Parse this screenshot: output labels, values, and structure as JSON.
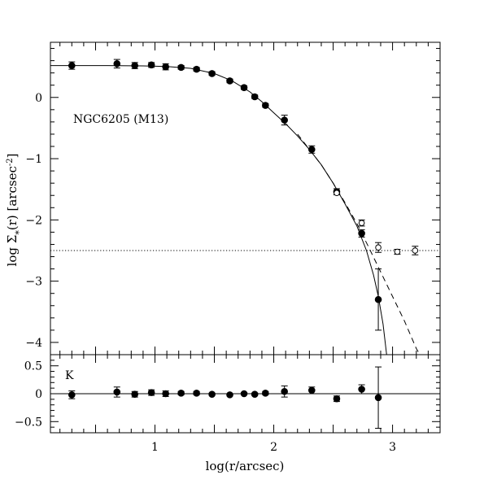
{
  "chart_data": [
    {
      "type": "scatter",
      "panel": "top",
      "title": "",
      "xlabel": "",
      "ylabel": "log Σ*(r) [arcsec⁻²]",
      "ylabel_parts": {
        "pre": "log Σ",
        "sub": "*",
        "mid": "(r) [arcsec",
        "sup": "-2",
        "post": "]"
      },
      "xlim": [
        0.12,
        3.4
      ],
      "ylim": [
        -4.2,
        0.9
      ],
      "yticks": [
        0,
        -1,
        -2,
        -3,
        -4
      ],
      "ytick_labels": [
        "0",
        "−1",
        "−2",
        "−3",
        "−4"
      ],
      "annotation": "NGC6205 (M13)",
      "background_level": -2.5,
      "series": [
        {
          "marker": "filled-circle",
          "points": [
            {
              "x": 0.3,
              "y": 0.52,
              "err": 0.06
            },
            {
              "x": 0.68,
              "y": 0.55,
              "err": 0.07
            },
            {
              "x": 0.83,
              "y": 0.52,
              "err": 0.05
            },
            {
              "x": 0.97,
              "y": 0.53,
              "err": 0.04
            },
            {
              "x": 1.09,
              "y": 0.5,
              "err": 0.05
            },
            {
              "x": 1.22,
              "y": 0.49,
              "err": 0.03
            },
            {
              "x": 1.35,
              "y": 0.46,
              "err": 0.03
            },
            {
              "x": 1.48,
              "y": 0.39,
              "err": 0.03
            },
            {
              "x": 1.63,
              "y": 0.27,
              "err": 0.03
            },
            {
              "x": 1.75,
              "y": 0.16,
              "err": 0.03
            },
            {
              "x": 1.84,
              "y": 0.01,
              "err": 0.03
            },
            {
              "x": 1.93,
              "y": -0.13,
              "err": 0.03
            },
            {
              "x": 2.09,
              "y": -0.37,
              "err": 0.08
            },
            {
              "x": 2.32,
              "y": -0.85,
              "err": 0.06
            },
            {
              "x": 2.53,
              "y": -1.54,
              "err": 0.05
            },
            {
              "x": 2.74,
              "y": -2.22,
              "err": 0.06
            },
            {
              "x": 2.88,
              "y": -3.3,
              "err": 0.5
            }
          ]
        },
        {
          "marker": "open-circle",
          "points": [
            {
              "x": 2.53,
              "y": -1.56,
              "err": 0.03
            },
            {
              "x": 2.74,
              "y": -2.05,
              "err": 0.05
            },
            {
              "x": 2.88,
              "y": -2.45,
              "err": 0.08
            },
            {
              "x": 3.04,
              "y": -2.52,
              "err": 0.04
            },
            {
              "x": 3.19,
              "y": -2.5,
              "err": 0.07
            }
          ]
        }
      ],
      "models": [
        {
          "style": "solid",
          "points": [
            [
              0.12,
              0.52
            ],
            [
              0.6,
              0.52
            ],
            [
              0.9,
              0.515
            ],
            [
              1.1,
              0.505
            ],
            [
              1.3,
              0.475
            ],
            [
              1.5,
              0.39
            ],
            [
              1.65,
              0.27
            ],
            [
              1.8,
              0.09
            ],
            [
              1.9,
              -0.07
            ],
            [
              2.0,
              -0.25
            ],
            [
              2.1,
              -0.43
            ],
            [
              2.2,
              -0.63
            ],
            [
              2.3,
              -0.85
            ],
            [
              2.4,
              -1.1
            ],
            [
              2.5,
              -1.4
            ],
            [
              2.6,
              -1.74
            ],
            [
              2.7,
              -2.1
            ],
            [
              2.78,
              -2.5
            ],
            [
              2.84,
              -2.9
            ],
            [
              2.88,
              -3.25
            ],
            [
              2.92,
              -3.7
            ],
            [
              2.95,
              -4.2
            ]
          ]
        },
        {
          "style": "dashed",
          "points": [
            [
              2.2,
              -0.6
            ],
            [
              2.3,
              -0.85
            ],
            [
              2.4,
              -1.1
            ],
            [
              2.5,
              -1.4
            ],
            [
              2.6,
              -1.72
            ],
            [
              2.7,
              -2.06
            ],
            [
              2.8,
              -2.45
            ],
            [
              2.9,
              -2.85
            ],
            [
              3.0,
              -3.25
            ],
            [
              3.1,
              -3.65
            ],
            [
              3.2,
              -4.1
            ],
            [
              3.23,
              -4.2
            ]
          ]
        }
      ]
    },
    {
      "type": "scatter",
      "panel": "bottom",
      "xlabel": "log(r/arcsec)",
      "ylabel": "",
      "annotation": "K",
      "xlim": [
        0.12,
        3.4
      ],
      "ylim": [
        -0.7,
        0.7
      ],
      "xticks": [
        1,
        2,
        3
      ],
      "xtick_labels": [
        "1",
        "2",
        "3"
      ],
      "yticks": [
        0.5,
        0,
        -0.5
      ],
      "ytick_labels": [
        "0.5",
        "0",
        "−0.5"
      ],
      "reference_line": 0,
      "series": [
        {
          "marker": "filled-circle",
          "points": [
            {
              "x": 0.3,
              "y": -0.02,
              "err": 0.07
            },
            {
              "x": 0.68,
              "y": 0.03,
              "err": 0.09
            },
            {
              "x": 0.83,
              "y": -0.01,
              "err": 0.05
            },
            {
              "x": 0.97,
              "y": 0.02,
              "err": 0.05
            },
            {
              "x": 1.09,
              "y": 0.0,
              "err": 0.05
            },
            {
              "x": 1.22,
              "y": 0.01,
              "err": 0.03
            },
            {
              "x": 1.35,
              "y": 0.01,
              "err": 0.03
            },
            {
              "x": 1.48,
              "y": -0.01,
              "err": 0.02
            },
            {
              "x": 1.63,
              "y": -0.02,
              "err": 0.02
            },
            {
              "x": 1.75,
              "y": 0.0,
              "err": 0.02
            },
            {
              "x": 1.84,
              "y": -0.01,
              "err": 0.02
            },
            {
              "x": 1.93,
              "y": 0.01,
              "err": 0.03
            },
            {
              "x": 2.09,
              "y": 0.04,
              "err": 0.1
            },
            {
              "x": 2.32,
              "y": 0.06,
              "err": 0.06
            },
            {
              "x": 2.53,
              "y": -0.09,
              "err": 0.05
            },
            {
              "x": 2.74,
              "y": 0.08,
              "err": 0.08
            },
            {
              "x": 2.88,
              "y": -0.07,
              "err": 0.55
            }
          ]
        }
      ]
    }
  ]
}
